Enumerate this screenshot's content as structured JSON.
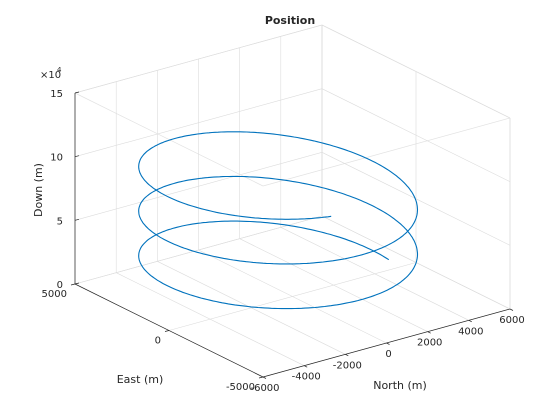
{
  "chart_data": {
    "type": "line",
    "title": "Position",
    "xlabel": "North (m)",
    "ylabel": "East (m)",
    "zlabel": "Down (m)",
    "z_exponent_label": "×10",
    "z_exponent_power": "4",
    "xlim": [
      -6000,
      6000
    ],
    "ylim": [
      -5000,
      5000
    ],
    "zlim": [
      0,
      15
    ],
    "xticks": [
      -6000,
      -4000,
      -2000,
      0,
      2000,
      4000,
      6000
    ],
    "xtick_labels": [
      "-6000",
      "-4000",
      "-2000",
      "0",
      "2000",
      "4000",
      "6000"
    ],
    "yticks": [
      -5000,
      0,
      5000
    ],
    "ytick_labels": [
      "-5000",
      "0",
      "5000"
    ],
    "zticks": [
      0,
      5,
      10,
      15
    ],
    "ztick_labels": [
      "0",
      "5",
      "10",
      "15"
    ],
    "grid": true,
    "series": [
      {
        "color": "#0072BD",
        "helix": {
          "center_north": -700,
          "center_east": 0,
          "radius": 5000,
          "phase_start_deg": -5,
          "phase_end_deg": 970,
          "down_start": 1.3,
          "down_end": 10.8
        }
      }
    ]
  }
}
